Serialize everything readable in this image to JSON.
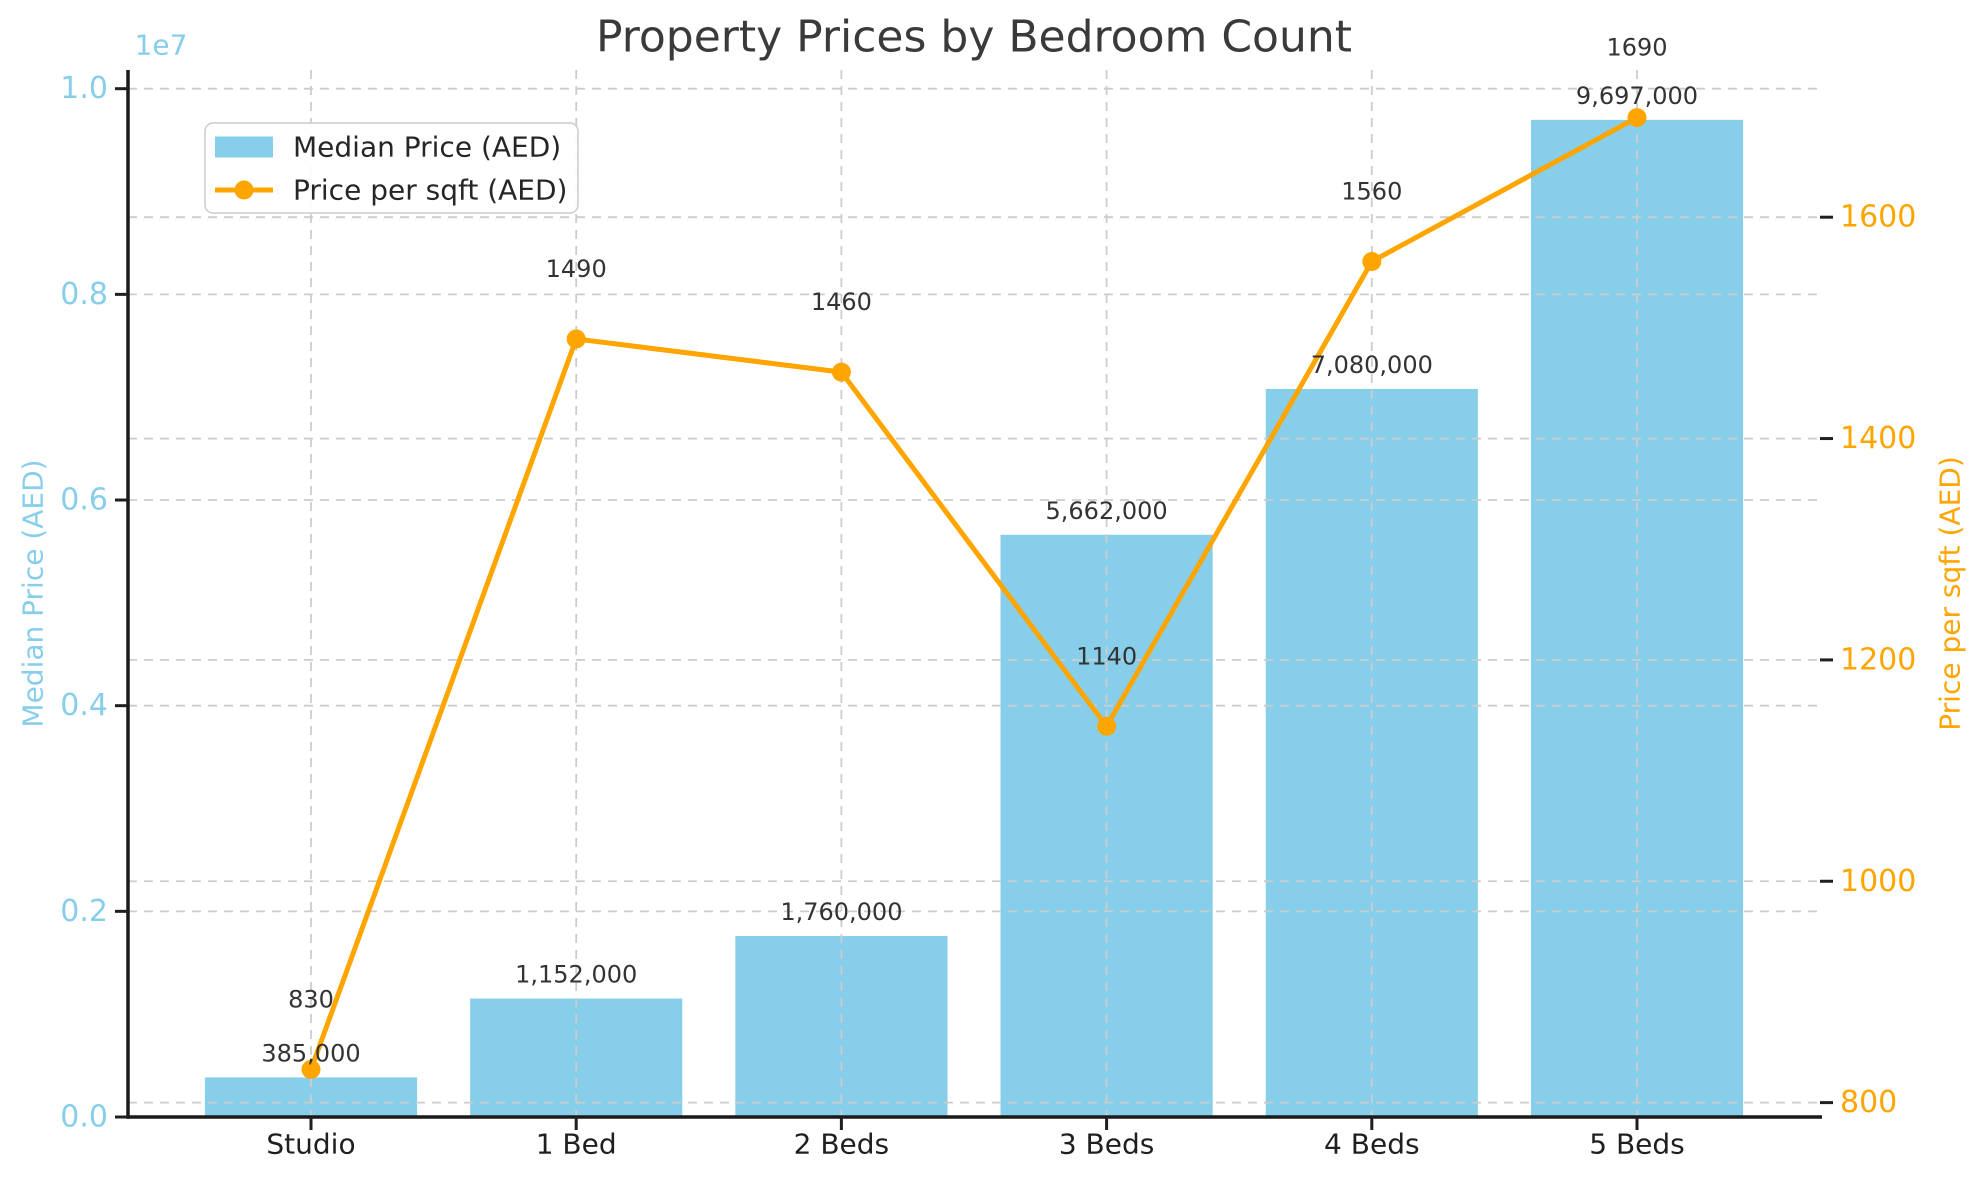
{
  "chart_data": {
    "type": "bar+line",
    "title": "Property Prices by Bedroom Count",
    "categories": [
      "Studio",
      "1 Bed",
      "2 Beds",
      "3 Beds",
      "4 Beds",
      "5 Beds"
    ],
    "series": [
      {
        "name": "Median Price (AED)",
        "type": "bar",
        "axis": "left",
        "color": "#87CEEB",
        "values": [
          385000,
          1152000,
          1760000,
          5662000,
          7080000,
          9697000
        ],
        "point_labels": [
          "385,000",
          "1,152,000",
          "1,760,000",
          "5,662,000",
          "7,080,000",
          "9,697,000"
        ]
      },
      {
        "name": "Price per sqft (AED)",
        "type": "line",
        "axis": "right",
        "color": "#FFA500",
        "values": [
          830,
          1490,
          1460,
          1140,
          1560,
          1690
        ],
        "point_labels": [
          "830",
          "1490",
          "1460",
          "1140",
          "1560",
          "1690"
        ]
      }
    ],
    "left_axis": {
      "label": "Median Price (AED)",
      "offset_text": "1e7",
      "color": "#87CEEB",
      "tick_labels": [
        "0.0",
        "0.2",
        "0.4",
        "0.6",
        "0.8",
        "1.0"
      ],
      "tick_values": [
        0,
        2000000,
        4000000,
        6000000,
        8000000,
        10000000
      ],
      "range": [
        0,
        10181850
      ]
    },
    "right_axis": {
      "label": "Price per sqft (AED)",
      "color": "#FFA500",
      "tick_labels": [
        "800",
        "1000",
        "1200",
        "1400",
        "1600"
      ],
      "tick_values": [
        800,
        1000,
        1200,
        1400,
        1600
      ],
      "range": [
        787,
        1733
      ]
    },
    "legend": {
      "position": "upper left",
      "entries": [
        "Median Price (AED)",
        "Price per sqft (AED)"
      ]
    },
    "grid": true
  }
}
